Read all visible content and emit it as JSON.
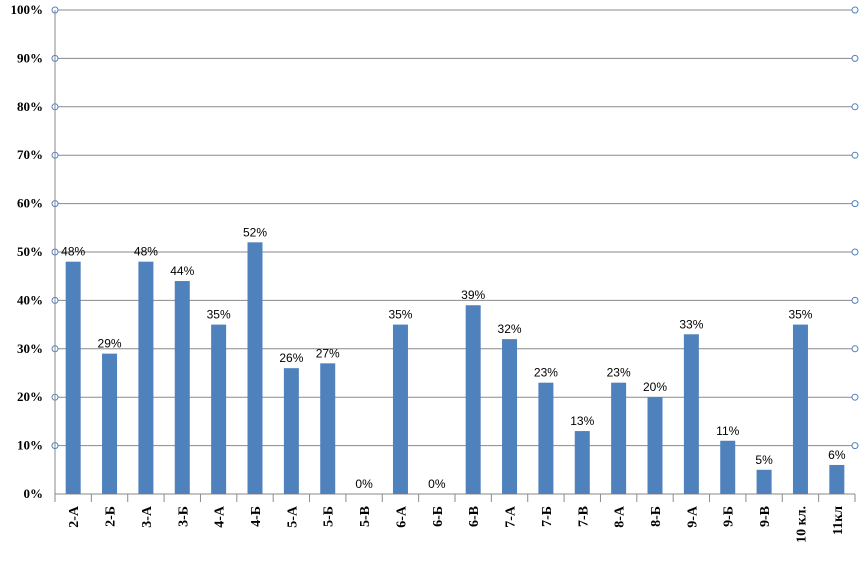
{
  "chart_data": {
    "type": "bar",
    "categories": [
      "2-А",
      "2-Б",
      "3-А",
      "3-Б",
      "4-А",
      "4-Б",
      "5-А",
      "5-Б",
      "5-В",
      "6-А",
      "6-Б",
      "6-В",
      "7-А",
      "7-Б",
      "7-В",
      "8-А",
      "8-Б",
      "9-А",
      "9-Б",
      "9-В",
      "10 кл.",
      "11кл"
    ],
    "series": [
      {
        "values": [
          48,
          29,
          48,
          44,
          35,
          52,
          26,
          27,
          0,
          35,
          0,
          39,
          32,
          23,
          13,
          23,
          20,
          33,
          11,
          5,
          35,
          6
        ]
      }
    ],
    "data_labels": [
      "48%",
      "29%",
      "48%",
      "44%",
      "35%",
      "52%",
      "26%",
      "27%",
      "0%",
      "35%",
      "0%",
      "39%",
      "32%",
      "23%",
      "13%",
      "23%",
      "20%",
      "33%",
      "11%",
      "5%",
      "35%",
      "6%"
    ],
    "y_ticks": [
      "0%",
      "10%",
      "20%",
      "30%",
      "40%",
      "50%",
      "60%",
      "70%",
      "80%",
      "90%",
      "100%"
    ],
    "ylim": [
      0,
      100
    ],
    "grid": true,
    "bar_color": "#4f81bd",
    "title": "",
    "xlabel": "",
    "ylabel": ""
  }
}
